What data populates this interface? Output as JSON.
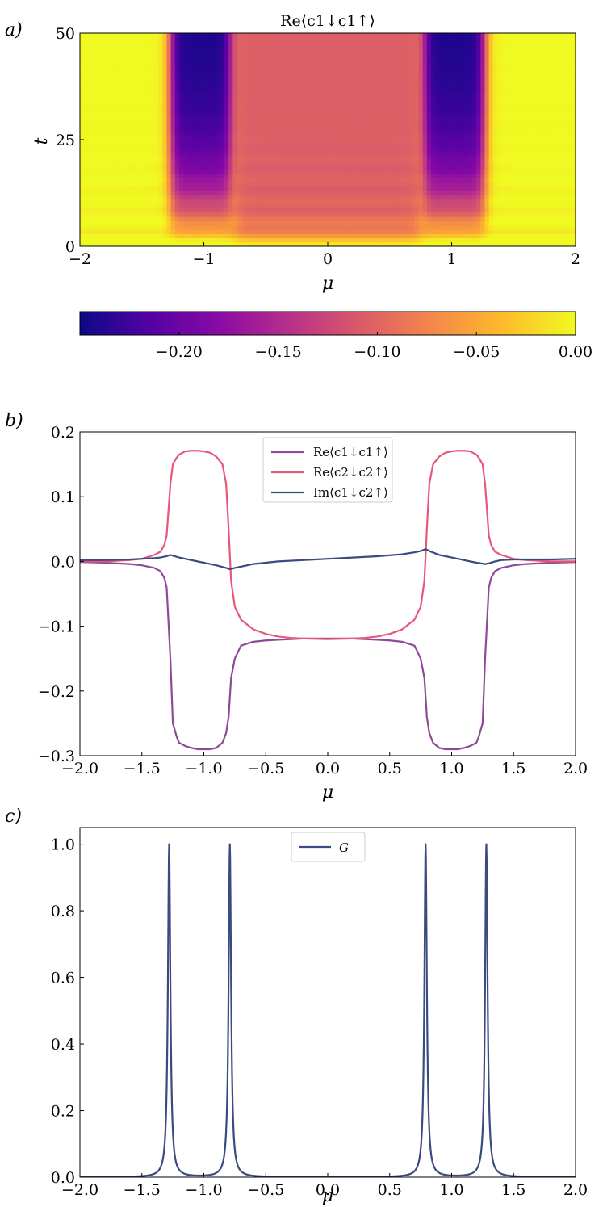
{
  "chart_data": [
    {
      "panel_label": "a)",
      "type": "heatmap",
      "title": "Re⟨c1↓c1↑⟩",
      "xlabel": "μ",
      "ylabel": "t",
      "xlim": [
        -2,
        2
      ],
      "ylim": [
        0,
        50
      ],
      "xticks": [
        "−2",
        "−1",
        "0",
        "1",
        "2"
      ],
      "yticks": [
        "0",
        "25",
        "50"
      ],
      "colorbar": {
        "range": [
          -0.25,
          0.0
        ],
        "ticks": [
          {
            "value": -0.2,
            "label": "−0.20"
          },
          {
            "value": -0.15,
            "label": "−0.15"
          },
          {
            "value": -0.1,
            "label": "−0.10"
          },
          {
            "value": -0.05,
            "label": "−0.05"
          },
          {
            "value": 0.0,
            "label": "0.00"
          }
        ],
        "colormap": "plasma",
        "placement": "bottom"
      },
      "regions_at_final_t": [
        {
          "mu_range": [
            -2.0,
            -1.3
          ],
          "value": 0.0
        },
        {
          "mu_range": [
            -1.25,
            -0.78
          ],
          "value": -0.24
        },
        {
          "mu_range": [
            -0.75,
            0.75
          ],
          "value": -0.1
        },
        {
          "mu_range": [
            0.78,
            1.25
          ],
          "value": -0.24
        },
        {
          "mu_range": [
            1.3,
            2.0
          ],
          "value": 0.0
        }
      ]
    },
    {
      "panel_label": "b)",
      "type": "line",
      "xlabel": "μ",
      "ylabel": "",
      "xlim": [
        -2.0,
        2.0
      ],
      "ylim": [
        -0.3,
        0.2
      ],
      "xticks": [
        "−2.0",
        "−1.5",
        "−1.0",
        "−0.5",
        "0.0",
        "0.5",
        "1.0",
        "1.5",
        "2.0"
      ],
      "yticks": [
        "−0.3",
        "−0.2",
        "−0.1",
        "0.0",
        "0.1",
        "0.2"
      ],
      "legend_placement": "top-center",
      "series": [
        {
          "name": "Re⟨c1↓c1↑⟩",
          "color": "#8e4a97",
          "x": [
            -2.0,
            -1.8,
            -1.6,
            -1.5,
            -1.4,
            -1.35,
            -1.32,
            -1.3,
            -1.27,
            -1.25,
            -1.22,
            -1.2,
            -1.15,
            -1.1,
            -1.05,
            -1.0,
            -0.95,
            -0.9,
            -0.85,
            -0.82,
            -0.8,
            -0.78,
            -0.75,
            -0.7,
            -0.6,
            -0.5,
            -0.4,
            -0.3,
            -0.2,
            0.0,
            0.2,
            0.3,
            0.4,
            0.5,
            0.6,
            0.7,
            0.75,
            0.78,
            0.8,
            0.82,
            0.85,
            0.9,
            0.95,
            1.0,
            1.05,
            1.1,
            1.15,
            1.2,
            1.22,
            1.25,
            1.27,
            1.3,
            1.32,
            1.35,
            1.4,
            1.5,
            1.6,
            1.8,
            2.0
          ],
          "y": [
            -0.001,
            -0.002,
            -0.004,
            -0.006,
            -0.01,
            -0.015,
            -0.025,
            -0.04,
            -0.15,
            -0.25,
            -0.27,
            -0.28,
            -0.285,
            -0.288,
            -0.29,
            -0.29,
            -0.29,
            -0.288,
            -0.28,
            -0.265,
            -0.24,
            -0.18,
            -0.15,
            -0.13,
            -0.124,
            -0.122,
            -0.121,
            -0.12,
            -0.119,
            -0.119,
            -0.119,
            -0.12,
            -0.121,
            -0.122,
            -0.124,
            -0.13,
            -0.15,
            -0.18,
            -0.24,
            -0.265,
            -0.28,
            -0.288,
            -0.29,
            -0.29,
            -0.29,
            -0.288,
            -0.285,
            -0.28,
            -0.27,
            -0.25,
            -0.15,
            -0.04,
            -0.025,
            -0.015,
            -0.01,
            -0.006,
            -0.004,
            -0.002,
            -0.001
          ]
        },
        {
          "name": "Re⟨c2↓c2↑⟩",
          "color": "#e8577a",
          "x": [
            -2.0,
            -1.8,
            -1.6,
            -1.5,
            -1.4,
            -1.35,
            -1.32,
            -1.3,
            -1.27,
            -1.25,
            -1.22,
            -1.2,
            -1.15,
            -1.1,
            -1.05,
            -1.0,
            -0.95,
            -0.9,
            -0.85,
            -0.82,
            -0.8,
            -0.78,
            -0.75,
            -0.7,
            -0.6,
            -0.5,
            -0.4,
            -0.3,
            -0.2,
            0.0,
            0.2,
            0.3,
            0.4,
            0.5,
            0.6,
            0.7,
            0.75,
            0.78,
            0.8,
            0.82,
            0.85,
            0.9,
            0.95,
            1.0,
            1.05,
            1.1,
            1.15,
            1.2,
            1.22,
            1.25,
            1.27,
            1.3,
            1.32,
            1.35,
            1.4,
            1.5,
            1.6,
            1.8,
            2.0
          ],
          "y": [
            0.0,
            0.0,
            0.002,
            0.004,
            0.01,
            0.015,
            0.025,
            0.04,
            0.12,
            0.15,
            0.16,
            0.165,
            0.17,
            0.171,
            0.171,
            0.17,
            0.168,
            0.162,
            0.15,
            0.12,
            0.05,
            -0.03,
            -0.07,
            -0.09,
            -0.105,
            -0.112,
            -0.116,
            -0.118,
            -0.119,
            -0.12,
            -0.119,
            -0.118,
            -0.116,
            -0.112,
            -0.105,
            -0.09,
            -0.07,
            -0.03,
            0.05,
            0.12,
            0.15,
            0.162,
            0.168,
            0.17,
            0.171,
            0.171,
            0.17,
            0.165,
            0.16,
            0.15,
            0.12,
            0.04,
            0.025,
            0.015,
            0.01,
            0.004,
            0.002,
            0.0,
            0.0
          ]
        },
        {
          "name": "Im⟨c1↓c2↑⟩",
          "color": "#3b4a80",
          "x": [
            -2.0,
            -1.8,
            -1.6,
            -1.5,
            -1.4,
            -1.35,
            -1.3,
            -1.27,
            -1.2,
            -1.1,
            -1.0,
            -0.9,
            -0.82,
            -0.79,
            -0.75,
            -0.6,
            -0.4,
            -0.2,
            0.0,
            0.2,
            0.4,
            0.6,
            0.7,
            0.75,
            0.79,
            0.82,
            0.9,
            1.0,
            1.1,
            1.2,
            1.27,
            1.3,
            1.35,
            1.4,
            1.5,
            1.6,
            1.8,
            2.0
          ],
          "y": [
            0.002,
            0.002,
            0.003,
            0.004,
            0.005,
            0.006,
            0.008,
            0.01,
            0.006,
            0.002,
            -0.002,
            -0.006,
            -0.01,
            -0.012,
            -0.01,
            -0.004,
            0.0,
            0.002,
            0.004,
            0.006,
            0.008,
            0.011,
            0.014,
            0.016,
            0.019,
            0.016,
            0.01,
            0.006,
            0.002,
            -0.002,
            -0.004,
            -0.003,
            0.0,
            0.002,
            0.003,
            0.003,
            0.003,
            0.004
          ]
        }
      ]
    },
    {
      "panel_label": "c)",
      "type": "line",
      "xlabel": "μ",
      "ylabel": "",
      "xlim": [
        -2.0,
        2.0
      ],
      "ylim": [
        0.0,
        1.05
      ],
      "xticks": [
        "−2.0",
        "−1.5",
        "−1.0",
        "−0.5",
        "0.0",
        "0.5",
        "1.0",
        "1.5",
        "2.0"
      ],
      "yticks": [
        "0.0",
        "0.2",
        "0.4",
        "0.6",
        "0.8",
        "1.0"
      ],
      "legend_placement": "top-center",
      "series": [
        {
          "name": "G",
          "color": "#3b4a80",
          "peaks": [
            -1.28,
            -0.79,
            0.79,
            1.28
          ],
          "peak_height": 1.0,
          "valley_between_peaks": 0.035
        }
      ]
    }
  ]
}
